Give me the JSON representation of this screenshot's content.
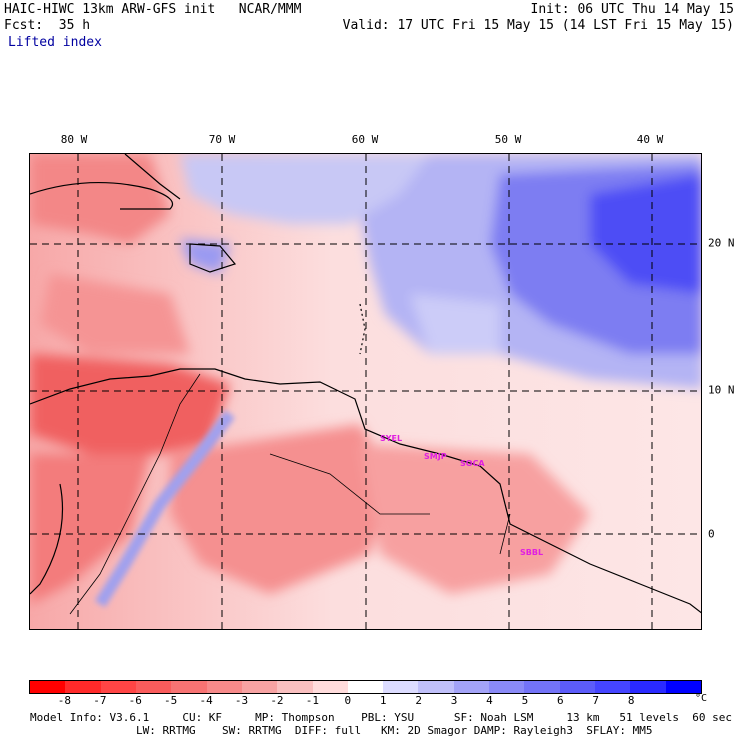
{
  "header": {
    "left_line1": "HAIC-HIWC 13km ARW-GFS init   NCAR/MMM",
    "left_line2": "Fcst:  35 h",
    "left_line3": "Lifted index",
    "right_line1": "Init: 06 UTC Thu 14 May 15",
    "right_line2": "Valid: 17 UTC Fri 15 May 15 (14 LST Fri 15 May 15)"
  },
  "map": {
    "lon_labels": [
      "80 W",
      "70 W",
      "60 W",
      "50 W",
      "40 W"
    ],
    "lat_labels": [
      "20 N",
      "10 N",
      "0"
    ],
    "stations": [
      "SYEL",
      "SMJP",
      "SOCA",
      "SBBL"
    ],
    "station_color": "#e020e0",
    "grid_style": "dashed"
  },
  "colorbar": {
    "ticks": [
      "-8",
      "-7",
      "-6",
      "-5",
      "-4",
      "-3",
      "-2",
      "-1",
      "0",
      "1",
      "2",
      "3",
      "4",
      "5",
      "6",
      "7",
      "8"
    ],
    "unit": "°C",
    "colors": [
      "#ff0000",
      "#ff2a2a",
      "#ff4545",
      "#fa5c5c",
      "#f77373",
      "#f78a8a",
      "#f7a3a3",
      "#fac0c0",
      "#ffdcdc",
      "#ffffff",
      "#dcdcff",
      "#c0c0fa",
      "#a3a3f7",
      "#8a8af7",
      "#7373f7",
      "#5c5cfa",
      "#4545ff",
      "#2a2aff",
      "#0000ff"
    ]
  },
  "footer": {
    "line1": "Model Info: V3.6.1     CU: KF     MP: Thompson    PBL: YSU      SF: Noah LSM     13 km   51 levels  60 sec",
    "line2": "                LW: RRTMG    SW: RRTMG  DIFF: full   KM: 2D Smagor DAMP: Rayleigh3  SFLAY: MM5"
  }
}
